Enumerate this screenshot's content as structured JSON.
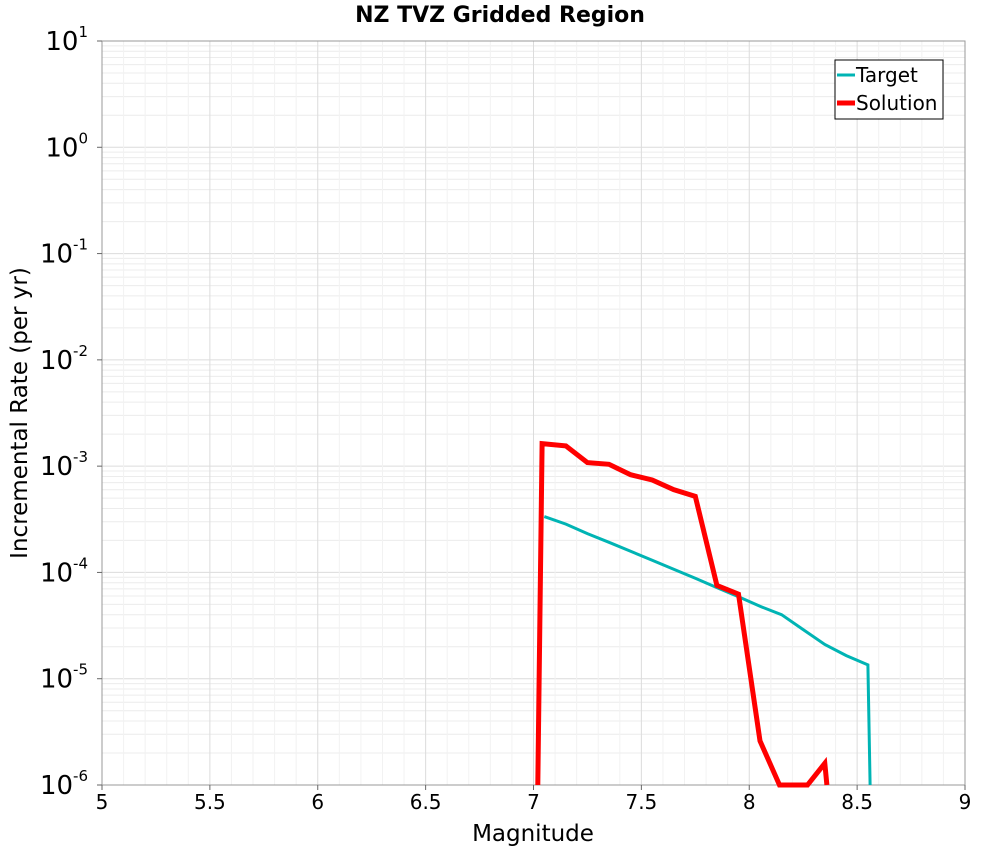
{
  "chart_data": {
    "type": "line",
    "title": "NZ TVZ Gridded Region",
    "xlabel": "Magnitude",
    "ylabel": "Incremental Rate (per yr)",
    "xlim": [
      5,
      9
    ],
    "ylim": [
      1e-06,
      10
    ],
    "yscale": "log",
    "grid": true,
    "legend_position": "top-right",
    "x_ticks": [
      "5",
      "5.5",
      "6",
      "6.5",
      "7",
      "7.5",
      "8",
      "8.5",
      "9"
    ],
    "y_ticks": [
      {
        "base": "10",
        "exp": "1",
        "value": 10
      },
      {
        "base": "10",
        "exp": "0",
        "value": 1
      },
      {
        "base": "10",
        "exp": "-1",
        "value": 0.1
      },
      {
        "base": "10",
        "exp": "-2",
        "value": 0.01
      },
      {
        "base": "10",
        "exp": "-3",
        "value": 0.001
      },
      {
        "base": "10",
        "exp": "-4",
        "value": 0.0001
      },
      {
        "base": "10",
        "exp": "-5",
        "value": 1e-05
      },
      {
        "base": "10",
        "exp": "-6",
        "value": 1e-06
      }
    ],
    "series": [
      {
        "name": "Target",
        "color": "#00b4b4",
        "points": [
          [
            7.05,
            0.000335
          ],
          [
            7.15,
            0.000285
          ],
          [
            7.25,
            0.000232
          ],
          [
            7.35,
            0.000192
          ],
          [
            7.45,
            0.000158
          ],
          [
            7.55,
            0.00013
          ],
          [
            7.65,
            0.000107
          ],
          [
            7.75,
            8.8e-05
          ],
          [
            7.85,
            7.2e-05
          ],
          [
            7.95,
            5.9e-05
          ],
          [
            8.05,
            4.8e-05
          ],
          [
            8.15,
            4e-05
          ],
          [
            8.25,
            2.9e-05
          ],
          [
            8.35,
            2.1e-05
          ],
          [
            8.45,
            1.65e-05
          ],
          [
            8.55,
            1.35e-05
          ],
          [
            8.56,
            1e-06
          ]
        ]
      },
      {
        "name": "Solution",
        "color": "#ff0000",
        "points": [
          [
            7.02,
            1e-06
          ],
          [
            7.04,
            0.00163
          ],
          [
            7.15,
            0.00155
          ],
          [
            7.25,
            0.00108
          ],
          [
            7.35,
            0.00104
          ],
          [
            7.45,
            0.00083
          ],
          [
            7.55,
            0.00074
          ],
          [
            7.65,
            0.0006
          ],
          [
            7.75,
            0.00052
          ],
          [
            7.85,
            7.55e-05
          ],
          [
            7.95,
            6.25e-05
          ],
          [
            8.05,
            2.6e-06
          ],
          [
            8.14,
            1e-06
          ],
          [
            8.27,
            1e-06
          ],
          [
            8.35,
            1.6e-06
          ],
          [
            8.36,
            1e-06
          ]
        ]
      }
    ]
  }
}
